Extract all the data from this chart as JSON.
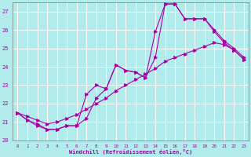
{
  "xlabel": "Windchill (Refroidissement éolien,°C)",
  "xlim": [
    -0.5,
    23.5
  ],
  "ylim": [
    20,
    27.5
  ],
  "yticks": [
    20,
    21,
    22,
    23,
    24,
    25,
    26,
    27
  ],
  "xticks": [
    0,
    1,
    2,
    3,
    4,
    5,
    6,
    7,
    8,
    9,
    10,
    11,
    12,
    13,
    14,
    15,
    16,
    17,
    18,
    19,
    20,
    21,
    22,
    23
  ],
  "bg_color": "#b2ebeb",
  "grid_color": "#ffffff",
  "line_color": "#aa00aa",
  "line1_x": [
    0,
    1,
    2,
    3,
    4,
    5,
    6,
    7,
    8,
    9,
    10,
    11,
    12,
    13,
    14,
    15,
    16,
    17,
    18,
    19,
    20,
    21,
    22,
    23
  ],
  "line1_y": [
    21.5,
    21.1,
    20.8,
    20.6,
    20.6,
    20.8,
    20.8,
    21.2,
    22.3,
    22.8,
    24.1,
    23.8,
    23.7,
    23.4,
    25.9,
    27.4,
    27.4,
    26.6,
    26.6,
    26.6,
    26.0,
    25.4,
    25.0,
    24.5
  ],
  "line2_x": [
    0,
    1,
    2,
    3,
    4,
    5,
    6,
    7,
    8,
    9,
    10,
    11,
    12,
    13,
    14,
    15,
    16,
    17,
    18,
    19,
    20,
    21,
    22,
    23
  ],
  "line2_y": [
    21.5,
    21.1,
    20.9,
    20.6,
    20.6,
    20.8,
    20.8,
    22.5,
    23.0,
    22.8,
    24.1,
    23.8,
    23.7,
    23.4,
    24.5,
    27.4,
    27.4,
    26.6,
    26.6,
    26.6,
    25.9,
    25.3,
    24.9,
    24.4
  ],
  "line3_x": [
    0,
    1,
    2,
    3,
    4,
    5,
    6,
    7,
    8,
    9,
    10,
    11,
    12,
    13,
    14,
    15,
    16,
    17,
    18,
    19,
    20,
    21,
    22,
    23
  ],
  "line3_y": [
    21.5,
    21.3,
    21.1,
    20.9,
    21.0,
    21.2,
    21.4,
    21.7,
    22.0,
    22.3,
    22.7,
    23.0,
    23.3,
    23.6,
    23.9,
    24.3,
    24.5,
    24.7,
    24.9,
    25.1,
    25.3,
    25.2,
    24.9,
    24.4
  ]
}
